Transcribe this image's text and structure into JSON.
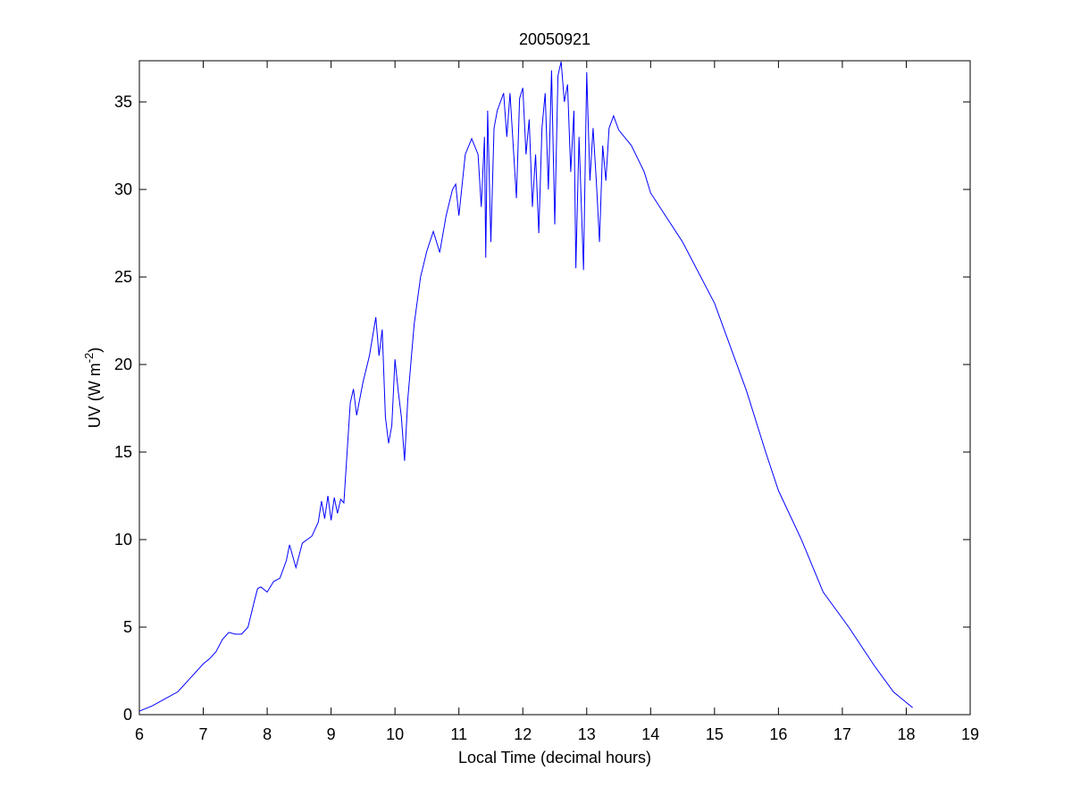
{
  "chart_data": {
    "type": "line",
    "title": "20050921",
    "xlabel": "Local Time (decimal hours)",
    "ylabel": {
      "text": "UV (W m",
      "superscript": "-2",
      "close": ")"
    },
    "color": "#0000ff",
    "xlim": [
      6,
      19
    ],
    "xticks": [
      6,
      7,
      8,
      9,
      10,
      11,
      12,
      13,
      14,
      15,
      16,
      17,
      18,
      19
    ],
    "ylim": [
      0,
      37.35
    ],
    "yticks": [
      0,
      5,
      10,
      15,
      20,
      25,
      30,
      35
    ],
    "x": [
      6.0,
      6.2,
      6.4,
      6.6,
      6.8,
      7.0,
      7.1,
      7.2,
      7.3,
      7.4,
      7.5,
      7.6,
      7.7,
      7.8,
      7.85,
      7.9,
      8.0,
      8.1,
      8.2,
      8.3,
      8.35,
      8.45,
      8.55,
      8.7,
      8.8,
      8.85,
      8.9,
      8.95,
      9.0,
      9.05,
      9.1,
      9.15,
      9.2,
      9.3,
      9.35,
      9.4,
      9.5,
      9.6,
      9.7,
      9.75,
      9.8,
      9.85,
      9.9,
      9.95,
      10.0,
      10.05,
      10.1,
      10.15,
      10.2,
      10.3,
      10.4,
      10.5,
      10.6,
      10.7,
      10.8,
      10.9,
      10.95,
      11.0,
      11.1,
      11.2,
      11.3,
      11.35,
      11.4,
      11.42,
      11.45,
      11.5,
      11.55,
      11.6,
      11.7,
      11.75,
      11.8,
      11.85,
      11.9,
      11.95,
      12.0,
      12.05,
      12.1,
      12.15,
      12.2,
      12.25,
      12.3,
      12.35,
      12.4,
      12.45,
      12.5,
      12.55,
      12.6,
      12.65,
      12.7,
      12.75,
      12.8,
      12.83,
      12.88,
      12.95,
      13.0,
      13.05,
      13.1,
      13.15,
      13.2,
      13.25,
      13.3,
      13.35,
      13.42,
      13.5,
      13.7,
      13.9,
      14.0,
      14.5,
      15.0,
      15.5,
      15.8,
      16.0,
      16.36,
      16.7,
      17.1,
      17.5,
      17.8,
      18.1
    ],
    "values": [
      0.2,
      0.5,
      0.9,
      1.3,
      2.1,
      2.9,
      3.2,
      3.6,
      4.3,
      4.7,
      4.6,
      4.6,
      5.0,
      6.5,
      7.2,
      7.3,
      7.0,
      7.6,
      7.8,
      8.8,
      9.7,
      8.4,
      9.8,
      10.2,
      11.0,
      12.2,
      11.2,
      12.5,
      11.1,
      12.4,
      11.5,
      12.3,
      12.1,
      17.8,
      18.6,
      17.1,
      19.0,
      20.5,
      22.7,
      20.5,
      22.0,
      17.0,
      15.5,
      16.5,
      20.3,
      18.5,
      17.0,
      14.5,
      18.0,
      22.3,
      25.0,
      26.5,
      27.6,
      26.4,
      28.5,
      30.0,
      30.3,
      28.5,
      32.0,
      32.9,
      32.0,
      29.0,
      33.0,
      26.1,
      34.5,
      27.0,
      33.5,
      34.5,
      35.5,
      33.0,
      35.5,
      32.5,
      29.5,
      35.2,
      35.8,
      32.0,
      34.0,
      29.0,
      32.0,
      27.5,
      33.5,
      35.5,
      30.0,
      36.8,
      28.0,
      36.5,
      37.3,
      35.0,
      36.0,
      31.0,
      34.5,
      25.5,
      33.0,
      25.4,
      36.7,
      30.5,
      33.5,
      30.5,
      27.0,
      32.5,
      30.5,
      33.5,
      34.2,
      33.4,
      32.5,
      31.0,
      29.8,
      27.0,
      23.5,
      18.5,
      15.0,
      12.8,
      10.0,
      7.0,
      5.0,
      2.8,
      1.3,
      0.4
    ]
  }
}
